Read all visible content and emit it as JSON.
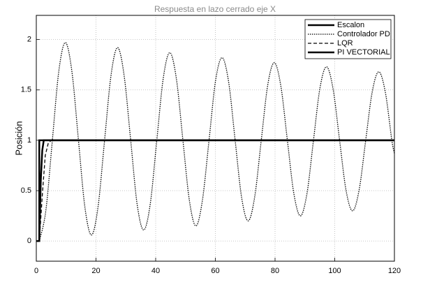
{
  "chart_data": {
    "type": "line",
    "title": "Respuesta en lazo cerrado eje X",
    "y_label": "Posición",
    "xlim": [
      0,
      120
    ],
    "ylim": [
      -0.2,
      2.24
    ],
    "xticks": [
      0,
      20,
      40,
      60,
      80,
      100,
      120
    ],
    "yticks": [
      0,
      0.5,
      1,
      1.5,
      2
    ],
    "grid": true,
    "legend": "upper-right",
    "series": [
      {
        "name": "Escalon",
        "color": "#000000",
        "style": "solid",
        "x": [
          0,
          1,
          1,
          120
        ],
        "values": [
          0,
          0,
          1,
          1
        ]
      },
      {
        "name": "Controlador PD",
        "color": "#000000",
        "style": "dotted",
        "x": [
          1,
          3.19,
          5.38,
          7.56,
          9.75,
          11.94,
          14.13,
          16.31,
          18.5,
          20.69,
          22.88,
          25.06,
          27.25,
          29.44,
          31.63,
          33.81,
          36,
          38.19,
          40.38,
          42.56,
          44.75,
          46.94,
          49.13,
          51.31,
          53.5,
          55.69,
          57.88,
          60.06,
          62.25,
          64.44,
          66.63,
          68.81,
          71,
          73.19,
          75.38,
          77.56,
          79.75,
          81.94,
          84.13,
          86.31,
          88.5,
          90.69,
          92.88,
          95.06,
          97.25,
          99.44,
          101.63,
          103.81,
          106,
          108.19,
          110.38,
          112.56,
          114.75,
          116.94,
          119.13,
          120
        ],
        "values": [
          0,
          0.3,
          1,
          1.69,
          1.97,
          1.68,
          1,
          0.33,
          0.06,
          0.34,
          1,
          1.65,
          1.92,
          1.64,
          1,
          0.36,
          0.11,
          0.37,
          1,
          1.62,
          1.87,
          1.61,
          1,
          0.4,
          0.15,
          0.41,
          1,
          1.59,
          1.82,
          1.58,
          1,
          0.43,
          0.2,
          0.44,
          1,
          1.55,
          1.77,
          1.54,
          1,
          0.47,
          0.25,
          0.47,
          1,
          1.52,
          1.73,
          1.51,
          1,
          0.5,
          0.3,
          0.51,
          1,
          1.48,
          1.68,
          1.48,
          1,
          0.87
        ]
      },
      {
        "name": "LQR",
        "color": "#000000",
        "style": "dashed",
        "x": [
          1,
          2,
          3,
          4,
          5,
          120
        ],
        "values": [
          0,
          0.45,
          0.85,
          0.97,
          1,
          1
        ]
      },
      {
        "name": "PI VECTORIAL",
        "color": "#000000",
        "style": "solid",
        "x": [
          1,
          1.5,
          2,
          2.5,
          120
        ],
        "values": [
          0,
          0.6,
          0.9,
          1,
          1
        ]
      }
    ]
  }
}
